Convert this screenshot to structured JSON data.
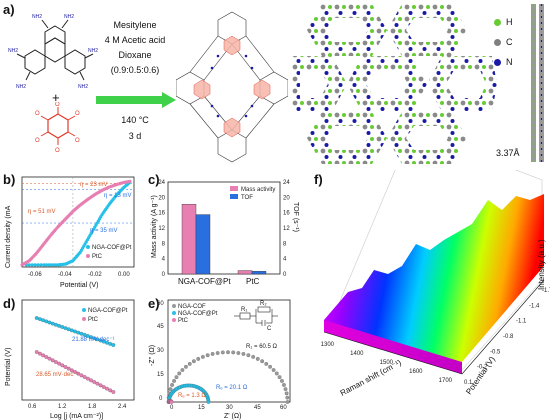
{
  "panel_labels": {
    "a": "a)",
    "b": "b)",
    "c": "c)",
    "d": "d)",
    "e": "e)",
    "f": "f)"
  },
  "synthesis": {
    "solvent1": "Mesitylene",
    "acid": "4 M Acetic acid",
    "solvent2": "Dioxane",
    "ratio": "(0.9:0.5:0.6)",
    "temperature": "140 °C",
    "time": "3 d",
    "plus": "+",
    "amine_label": "NH2",
    "carbonyl_label": "O"
  },
  "structure_legend": [
    {
      "label": "H",
      "color": "#66cc33"
    },
    {
      "label": "C",
      "color": "#7f7f7f"
    },
    {
      "label": "N",
      "color": "#1a1aa6"
    }
  ],
  "stacking_distance": "3.37Å",
  "colors": {
    "pink": "#e87fb2",
    "blue": "#2a6fe0",
    "cyan": "#27c0e8",
    "gray": "#999999",
    "arrow": "#3fd14a",
    "ring_red": "#e03a2a"
  },
  "chart_data": [
    {
      "id": "b",
      "type": "line",
      "xlabel": "Potential (V)",
      "ylabel": "Current density (mA",
      "xlim": [
        -0.07,
        0.0
      ],
      "xticks": [
        "-0.06",
        "-0.04",
        "-0.02",
        "0.00"
      ],
      "series": [
        {
          "name": "NGA-COF@Pt",
          "color": "#27c0e8",
          "x": [
            -0.072,
            -0.06,
            -0.05,
            -0.045,
            -0.04,
            -0.035,
            -0.03,
            -0.025,
            -0.02,
            -0.015,
            -0.01,
            -0.005,
            0.0
          ],
          "y": [
            -200,
            -200,
            -200,
            -198,
            -190,
            -170,
            -140,
            -110,
            -80,
            -55,
            -33,
            -15,
            0
          ]
        },
        {
          "name": "PtC",
          "color": "#e87fb2",
          "x": [
            -0.075,
            -0.07,
            -0.065,
            -0.06,
            -0.055,
            -0.05,
            -0.045,
            -0.04,
            -0.035,
            -0.03,
            -0.025,
            -0.02,
            -0.015,
            -0.01,
            -0.005,
            0.0
          ],
          "y": [
            -200,
            -190,
            -172,
            -150,
            -128,
            -108,
            -90,
            -72,
            -57,
            -44,
            -32,
            -22,
            -14,
            -8,
            -3,
            0
          ]
        }
      ],
      "annotations": [
        "η = 23 mV",
        "η = 13 mV",
        "η = 51 mV",
        "η = 35 mV"
      ]
    },
    {
      "id": "c",
      "type": "bar",
      "categories": [
        "NGA-COF@Pt",
        "PtC"
      ],
      "series": [
        {
          "name": "Mass activity",
          "color": "#e87fb2",
          "values": [
            18.2,
            0.9
          ]
        },
        {
          "name": "TOF",
          "color": "#2a6fe0",
          "values": [
            15.5,
            0.7
          ]
        }
      ],
      "ylabel": "Mass activity (A g⁻¹)",
      "y2label": "TOF (s⁻¹)",
      "ylim": [
        0,
        24
      ],
      "yticks": [
        "0",
        "2",
        "4",
        "6",
        "8",
        "10",
        "12",
        "14",
        "16",
        "18",
        "20",
        "22",
        "24"
      ],
      "y2ticks": [
        "0",
        "4",
        "8",
        "12",
        "16",
        "20",
        "24"
      ]
    },
    {
      "id": "d",
      "type": "scatter",
      "xlabel": "Log [j (mA cm⁻²)]",
      "ylabel": "Potential (V)",
      "xticks": [
        "0.6",
        "1.2",
        "1.8",
        "2.4"
      ],
      "series": [
        {
          "name": "NGA-COF@Pt",
          "color": "#27c0e8",
          "x": [
            0.75,
            2.05
          ],
          "y": [
            0.82,
            0.55
          ]
        },
        {
          "name": "PtC",
          "color": "#e87fb2",
          "x": [
            0.75,
            2.05
          ],
          "y": [
            0.48,
            0.08
          ]
        }
      ],
      "annotations": [
        "21.88 mV·dec⁻¹",
        "28.65 mV·dec⁻¹"
      ]
    },
    {
      "id": "e",
      "type": "scatter",
      "xlabel": "Z' (Ω)",
      "ylabel": "-Z'' (Ω)",
      "xlim": [
        0,
        62
      ],
      "ylim": [
        0,
        62
      ],
      "xticks": [
        "0",
        "15",
        "30",
        "45",
        "60"
      ],
      "yticks": [
        "0",
        "15",
        "30",
        "45",
        "60"
      ],
      "series": [
        {
          "name": "NGA-COF",
          "color": "#999999",
          "center": 30.5,
          "radius": 30.25
        },
        {
          "name": "NGA-COF@Pt",
          "color": "#27c0e8",
          "center": 10.5,
          "radius": 10.05
        },
        {
          "name": "PtC",
          "color": "#e87fb2",
          "center": 1.1,
          "radius": 0.65
        }
      ],
      "annotations": [
        "R₁ = 60.5 Ω",
        "Rₑ = 20.1 Ω",
        "Rₑ = 1.3 Ω"
      ],
      "circuit": [
        "R₁",
        "R₂",
        "C"
      ]
    },
    {
      "id": "f",
      "type": "heatmap",
      "xlabel": "Raman shift (cm⁻¹)",
      "ylabel": "Potential (V)",
      "zlabel": "Intensity (a.u.)",
      "xticks": [
        "1300",
        "1400",
        "1500",
        "1600",
        "1700"
      ],
      "yticks": [
        "0.1",
        "-0.2",
        "-0.5",
        "-0.8",
        "-1.1",
        "-1.4",
        "-1.7"
      ]
    }
  ]
}
